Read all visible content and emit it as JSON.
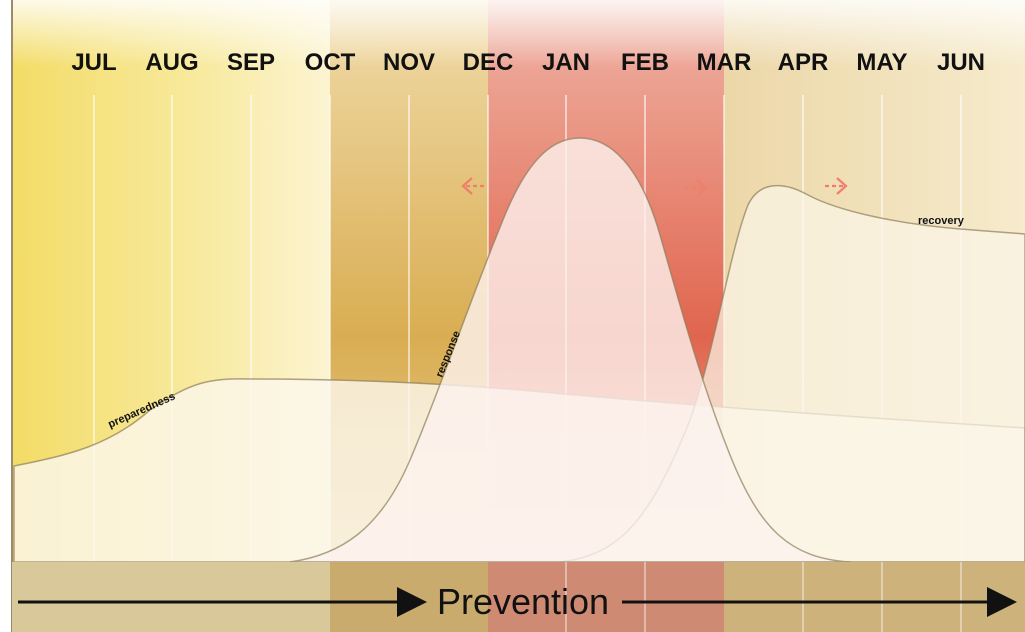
{
  "months": [
    "JUL",
    "AUG",
    "SEP",
    "OCT",
    "NOV",
    "DEC",
    "JAN",
    "FEB",
    "MAR",
    "APR",
    "MAY",
    "JUN"
  ],
  "curve_labels": {
    "preparedness": "preparedness",
    "response": "response",
    "recovery": "recovery"
  },
  "bottom_band": {
    "label": "Prevention"
  },
  "colors": {
    "yellow_zone": "#f6e27a",
    "gold_zone": "#d9b25a",
    "red_zone": "#e06a55",
    "peak_red": "#e8523a",
    "curve_fill": "#fbf4e6",
    "curve_edge": "#8a7a58",
    "arrow_red": "#f08070",
    "band_tan": "#c9b27a",
    "band_red": "#d07060"
  }
}
